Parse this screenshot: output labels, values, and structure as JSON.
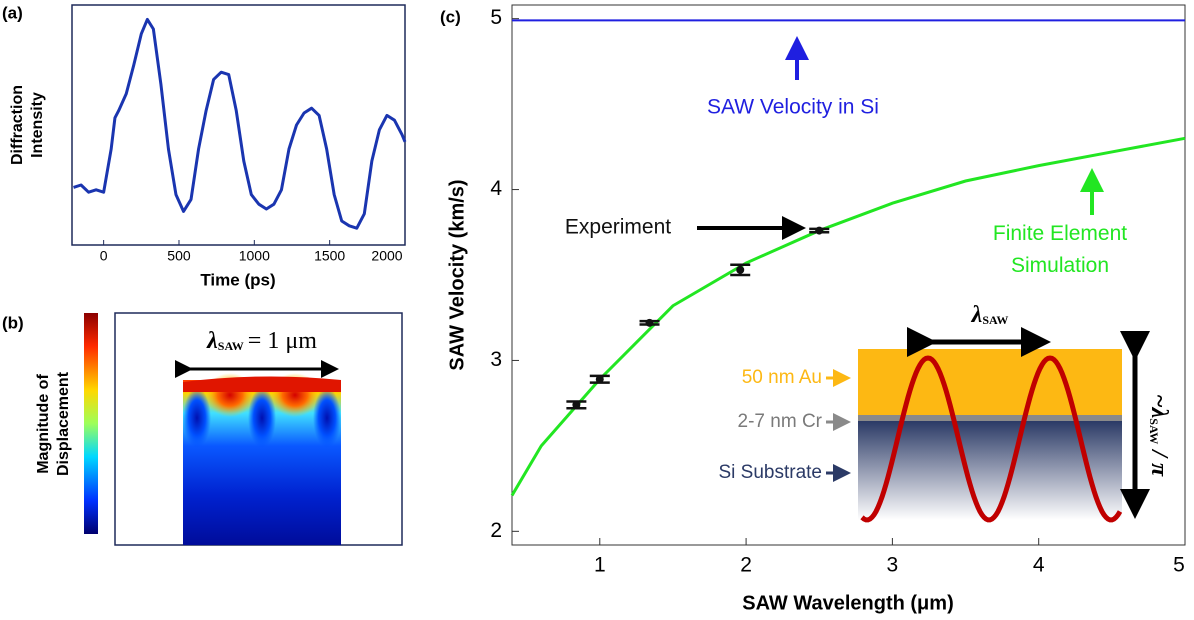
{
  "chart_data": [
    {
      "type": "line",
      "panel": "(a)",
      "ylabel_lines": [
        "Diffraction",
        "Intensity"
      ],
      "xlabel": "Time (ps)",
      "x": [
        -200,
        -150,
        -100,
        -50,
        0,
        50,
        75,
        100,
        150,
        200,
        250,
        290,
        330,
        380,
        430,
        480,
        530,
        580,
        630,
        680,
        730,
        780,
        830,
        880,
        930,
        980,
        1030,
        1080,
        1130,
        1180,
        1230,
        1280,
        1330,
        1380,
        1430,
        1480,
        1530,
        1580,
        1630,
        1680,
        1730,
        1780,
        1830,
        1880,
        1930,
        1980,
        2000
      ],
      "values": [
        0.24,
        0.25,
        0.22,
        0.23,
        0.22,
        0.4,
        0.53,
        0.56,
        0.63,
        0.75,
        0.88,
        0.94,
        0.9,
        0.67,
        0.4,
        0.21,
        0.14,
        0.19,
        0.4,
        0.56,
        0.69,
        0.72,
        0.71,
        0.56,
        0.35,
        0.21,
        0.17,
        0.15,
        0.17,
        0.23,
        0.4,
        0.5,
        0.55,
        0.57,
        0.54,
        0.4,
        0.21,
        0.1,
        0.08,
        0.07,
        0.13,
        0.35,
        0.48,
        0.54,
        0.52,
        0.46,
        0.43
      ],
      "color": "#1a35b0",
      "xlim": [
        -210,
        2000
      ],
      "ylim": [
        0,
        1
      ],
      "xticks": [
        0,
        500,
        1000,
        1500,
        2000
      ]
    },
    {
      "type": "line",
      "panel": "(c)",
      "ylabel": "SAW Velocity (km/s)",
      "xlabel": "SAW Wavelength (μm)",
      "xlim": [
        0.4,
        5
      ],
      "ylim": [
        1.92,
        5.08
      ],
      "xticks": [
        1,
        2,
        3,
        4,
        5
      ],
      "yticks": [
        2,
        3,
        4,
        5
      ],
      "series": [
        {
          "name": "SAW Velocity in Si",
          "color": "#1f1fe0",
          "x": [
            0.4,
            5
          ],
          "values": [
            4.99,
            4.99
          ]
        },
        {
          "name": "Finite Element Simulation",
          "color": "#22e622",
          "x": [
            0.4,
            0.6,
            1.0,
            1.5,
            2.0,
            2.5,
            3.0,
            3.5,
            4.0,
            4.5,
            5.0
          ],
          "values": [
            2.21,
            2.5,
            2.89,
            3.32,
            3.57,
            3.76,
            3.92,
            4.05,
            4.14,
            4.22,
            4.3
          ]
        },
        {
          "name": "Experiment",
          "color": "#111111",
          "x": [
            0.84,
            1.0,
            1.34,
            1.96,
            2.5
          ],
          "values": [
            2.74,
            2.89,
            3.22,
            3.53,
            3.76
          ],
          "errors": [
            0.02,
            0.02,
            0.01,
            0.03,
            0.01
          ]
        }
      ]
    }
  ],
  "panel_b": {
    "panel": "(b)",
    "colorbar_lines": [
      "Magnitude of",
      "Displacement"
    ],
    "lambda": {
      "symbol": "λ",
      "subscript": "SAW",
      "rest": "= 1 μm"
    }
  },
  "inset": {
    "wavelength": {
      "symbol": "λ",
      "subscript": "SAW"
    },
    "depth": {
      "prefix": "~λ",
      "subscript": "SAW",
      "rest": "/ π"
    },
    "layers": [
      "50 nm Au",
      "2-7 nm Cr",
      "Si Substrate"
    ]
  }
}
